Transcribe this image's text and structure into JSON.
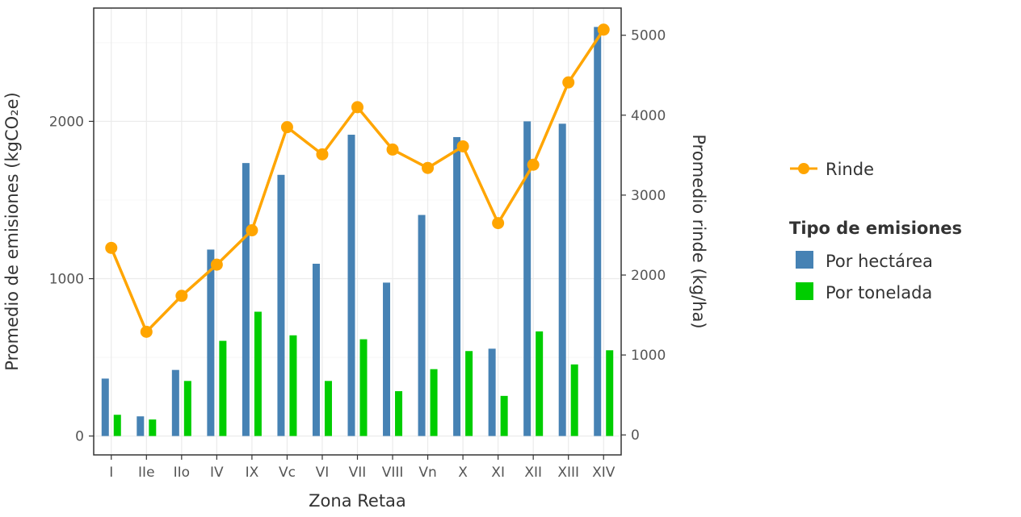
{
  "chart_data": {
    "type": "bar",
    "xlabel": "Zona Retaa",
    "ylabel_left": "Promedio de emisiones (kgCO₂e)",
    "ylabel_right": "Promedio rinde (kg/ha)",
    "categories": [
      "I",
      "IIe",
      "IIo",
      "IV",
      "IX",
      "Vc",
      "VI",
      "VII",
      "VIII",
      "Vn",
      "X",
      "XI",
      "XII",
      "XIII",
      "XIV"
    ],
    "ylim_left": [
      -120,
      2720
    ],
    "ylim_right": [
      -250,
      5340
    ],
    "yticks_left": [
      0,
      1000,
      2000
    ],
    "yticks_right": [
      0,
      1000,
      2000,
      3000,
      4000,
      5000
    ],
    "series": [
      {
        "name": "Por hectárea",
        "type": "bar",
        "axis": "left",
        "color": "#4682b4",
        "values": [
          365,
          125,
          420,
          1185,
          1735,
          1660,
          1095,
          1915,
          975,
          1405,
          1900,
          555,
          2000,
          1985,
          2600
        ]
      },
      {
        "name": "Por tonelada",
        "type": "bar",
        "axis": "left",
        "color": "#00cd00",
        "values": [
          135,
          105,
          350,
          605,
          790,
          640,
          350,
          615,
          285,
          425,
          540,
          255,
          665,
          455,
          545
        ]
      },
      {
        "name": "Rinde",
        "type": "line",
        "axis": "right",
        "color": "#ffa500",
        "values": [
          2340,
          1290,
          1740,
          2130,
          2560,
          3850,
          3510,
          4100,
          3570,
          3340,
          3610,
          2650,
          3380,
          4410,
          5070
        ]
      }
    ],
    "legend": {
      "position": "right",
      "line_entry": "Rinde",
      "title": "Tipo de emisiones",
      "bar_entries": [
        "Por hectárea",
        "Por tonelada"
      ]
    },
    "grid": true
  }
}
